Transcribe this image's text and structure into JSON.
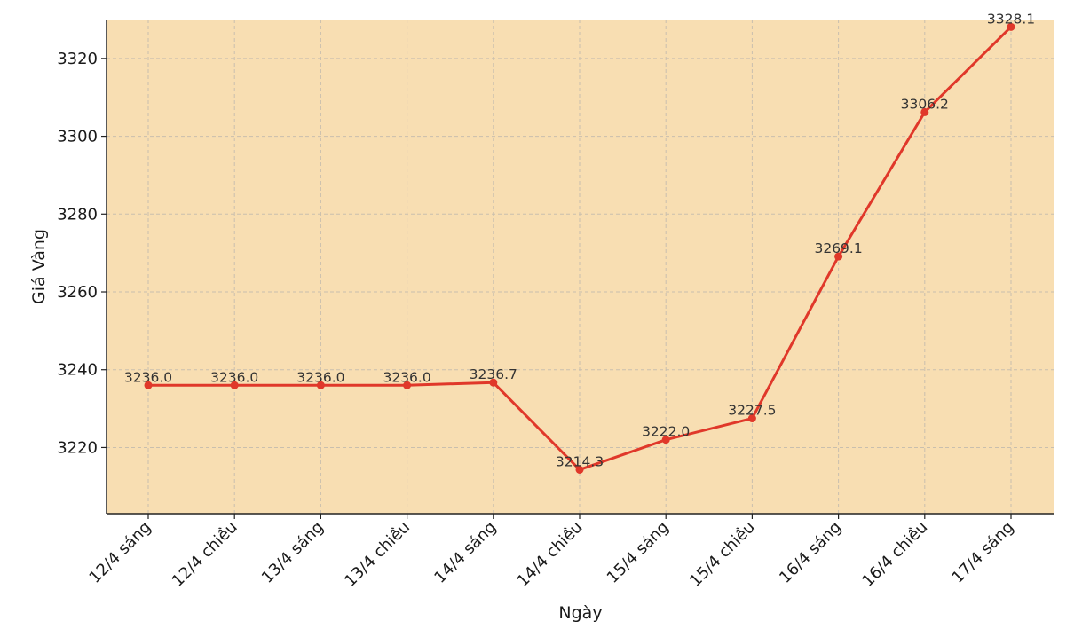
{
  "chart_data": {
    "type": "line",
    "title": "",
    "xlabel": "Ngày",
    "ylabel": "Giá Vàng",
    "categories": [
      "12/4 sáng",
      "12/4 chiều",
      "13/4 sáng",
      "13/4 chiều",
      "14/4 sáng",
      "14/4 chiều",
      "15/4 sáng",
      "15/4 chiều",
      "16/4 sáng",
      "16/4 chiều",
      "17/4 sáng"
    ],
    "series": [
      {
        "values": [
          3236.0,
          3236.0,
          3236.0,
          3236.0,
          3236.7,
          3214.3,
          3222.0,
          3227.5,
          3269.1,
          3306.2,
          3328.1
        ],
        "labels": [
          "3236.0",
          "3236.0",
          "3236.0",
          "3236.0",
          "3236.7",
          "3214.3",
          "3222.0",
          "3227.5",
          "3269.1",
          "3306.2",
          "3328.1"
        ]
      }
    ],
    "yticks": [
      "3220",
      "3240",
      "3260",
      "3280",
      "3300",
      "3320"
    ],
    "ylim": [
      3203,
      3330
    ],
    "grid": true,
    "legend": false,
    "colors": {
      "line": "#e0382a",
      "plot_background": "#f8deb2",
      "grid": "#c9bfae",
      "axis": "#222222"
    }
  }
}
